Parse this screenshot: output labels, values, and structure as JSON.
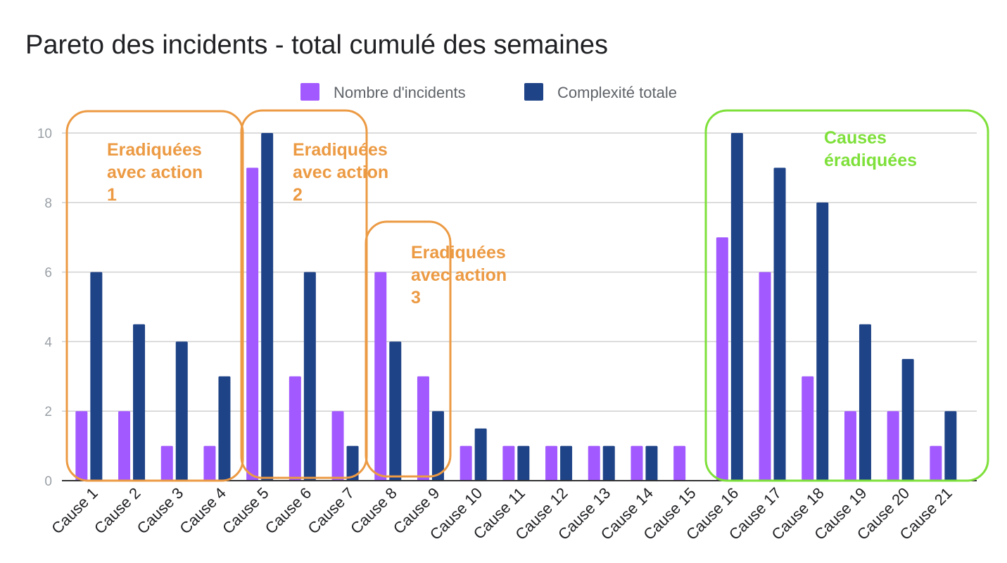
{
  "chart_data": {
    "type": "bar",
    "title": "Pareto des incidents - total cumulé des semaines",
    "xlabel": "",
    "ylabel": "",
    "ylim": [
      0,
      10
    ],
    "yticks": [
      0,
      2,
      4,
      6,
      8,
      10
    ],
    "grid": true,
    "legend_position": "top-center",
    "categories": [
      "Cause 1",
      "Cause 2",
      "Cause 3",
      "Cause 4",
      "Cause 5",
      "Cause 6",
      "Cause 7",
      "Cause 8",
      "Cause 9",
      "Cause 10",
      "Cause 11",
      "Cause 12",
      "Cause 13",
      "Cause 14",
      "Cause 15",
      "Cause 16",
      "Cause 17",
      "Cause 18",
      "Cause 19",
      "Cause 20",
      "Cause 21"
    ],
    "series": [
      {
        "name": "Nombre d'incidents",
        "color": "#a259ff",
        "values": [
          2,
          2,
          1,
          1,
          9,
          3,
          2,
          6,
          3,
          1,
          1,
          1,
          1,
          1,
          1,
          7,
          6,
          3,
          2,
          2,
          1
        ]
      },
      {
        "name": "Complexité totale",
        "color": "#1f4387",
        "values": [
          6,
          4.5,
          4,
          3,
          10,
          6,
          1,
          4,
          2,
          1.5,
          1,
          1,
          1,
          1,
          0,
          10,
          9,
          8,
          4.5,
          3.5,
          2
        ]
      }
    ],
    "annotations": [
      {
        "id": "action-1",
        "lines": [
          "Eradiquées",
          "avec action",
          "1"
        ],
        "color": "#ec9a43",
        "from": "Cause 1",
        "to": "Cause 4"
      },
      {
        "id": "action-2",
        "lines": [
          "Eradiquées",
          "avec action",
          "2"
        ],
        "color": "#ec9a43",
        "from": "Cause 5",
        "to": "Cause 7"
      },
      {
        "id": "action-3",
        "lines": [
          "Eradiquées",
          "avec action",
          "3"
        ],
        "color": "#ec9a43",
        "from": "Cause 8",
        "to": "Cause 9"
      },
      {
        "id": "eradicated",
        "lines": [
          "Causes",
          "éradiquées"
        ],
        "color": "#7ee03a",
        "from": "Cause 16",
        "to": "Cause 21"
      }
    ]
  }
}
